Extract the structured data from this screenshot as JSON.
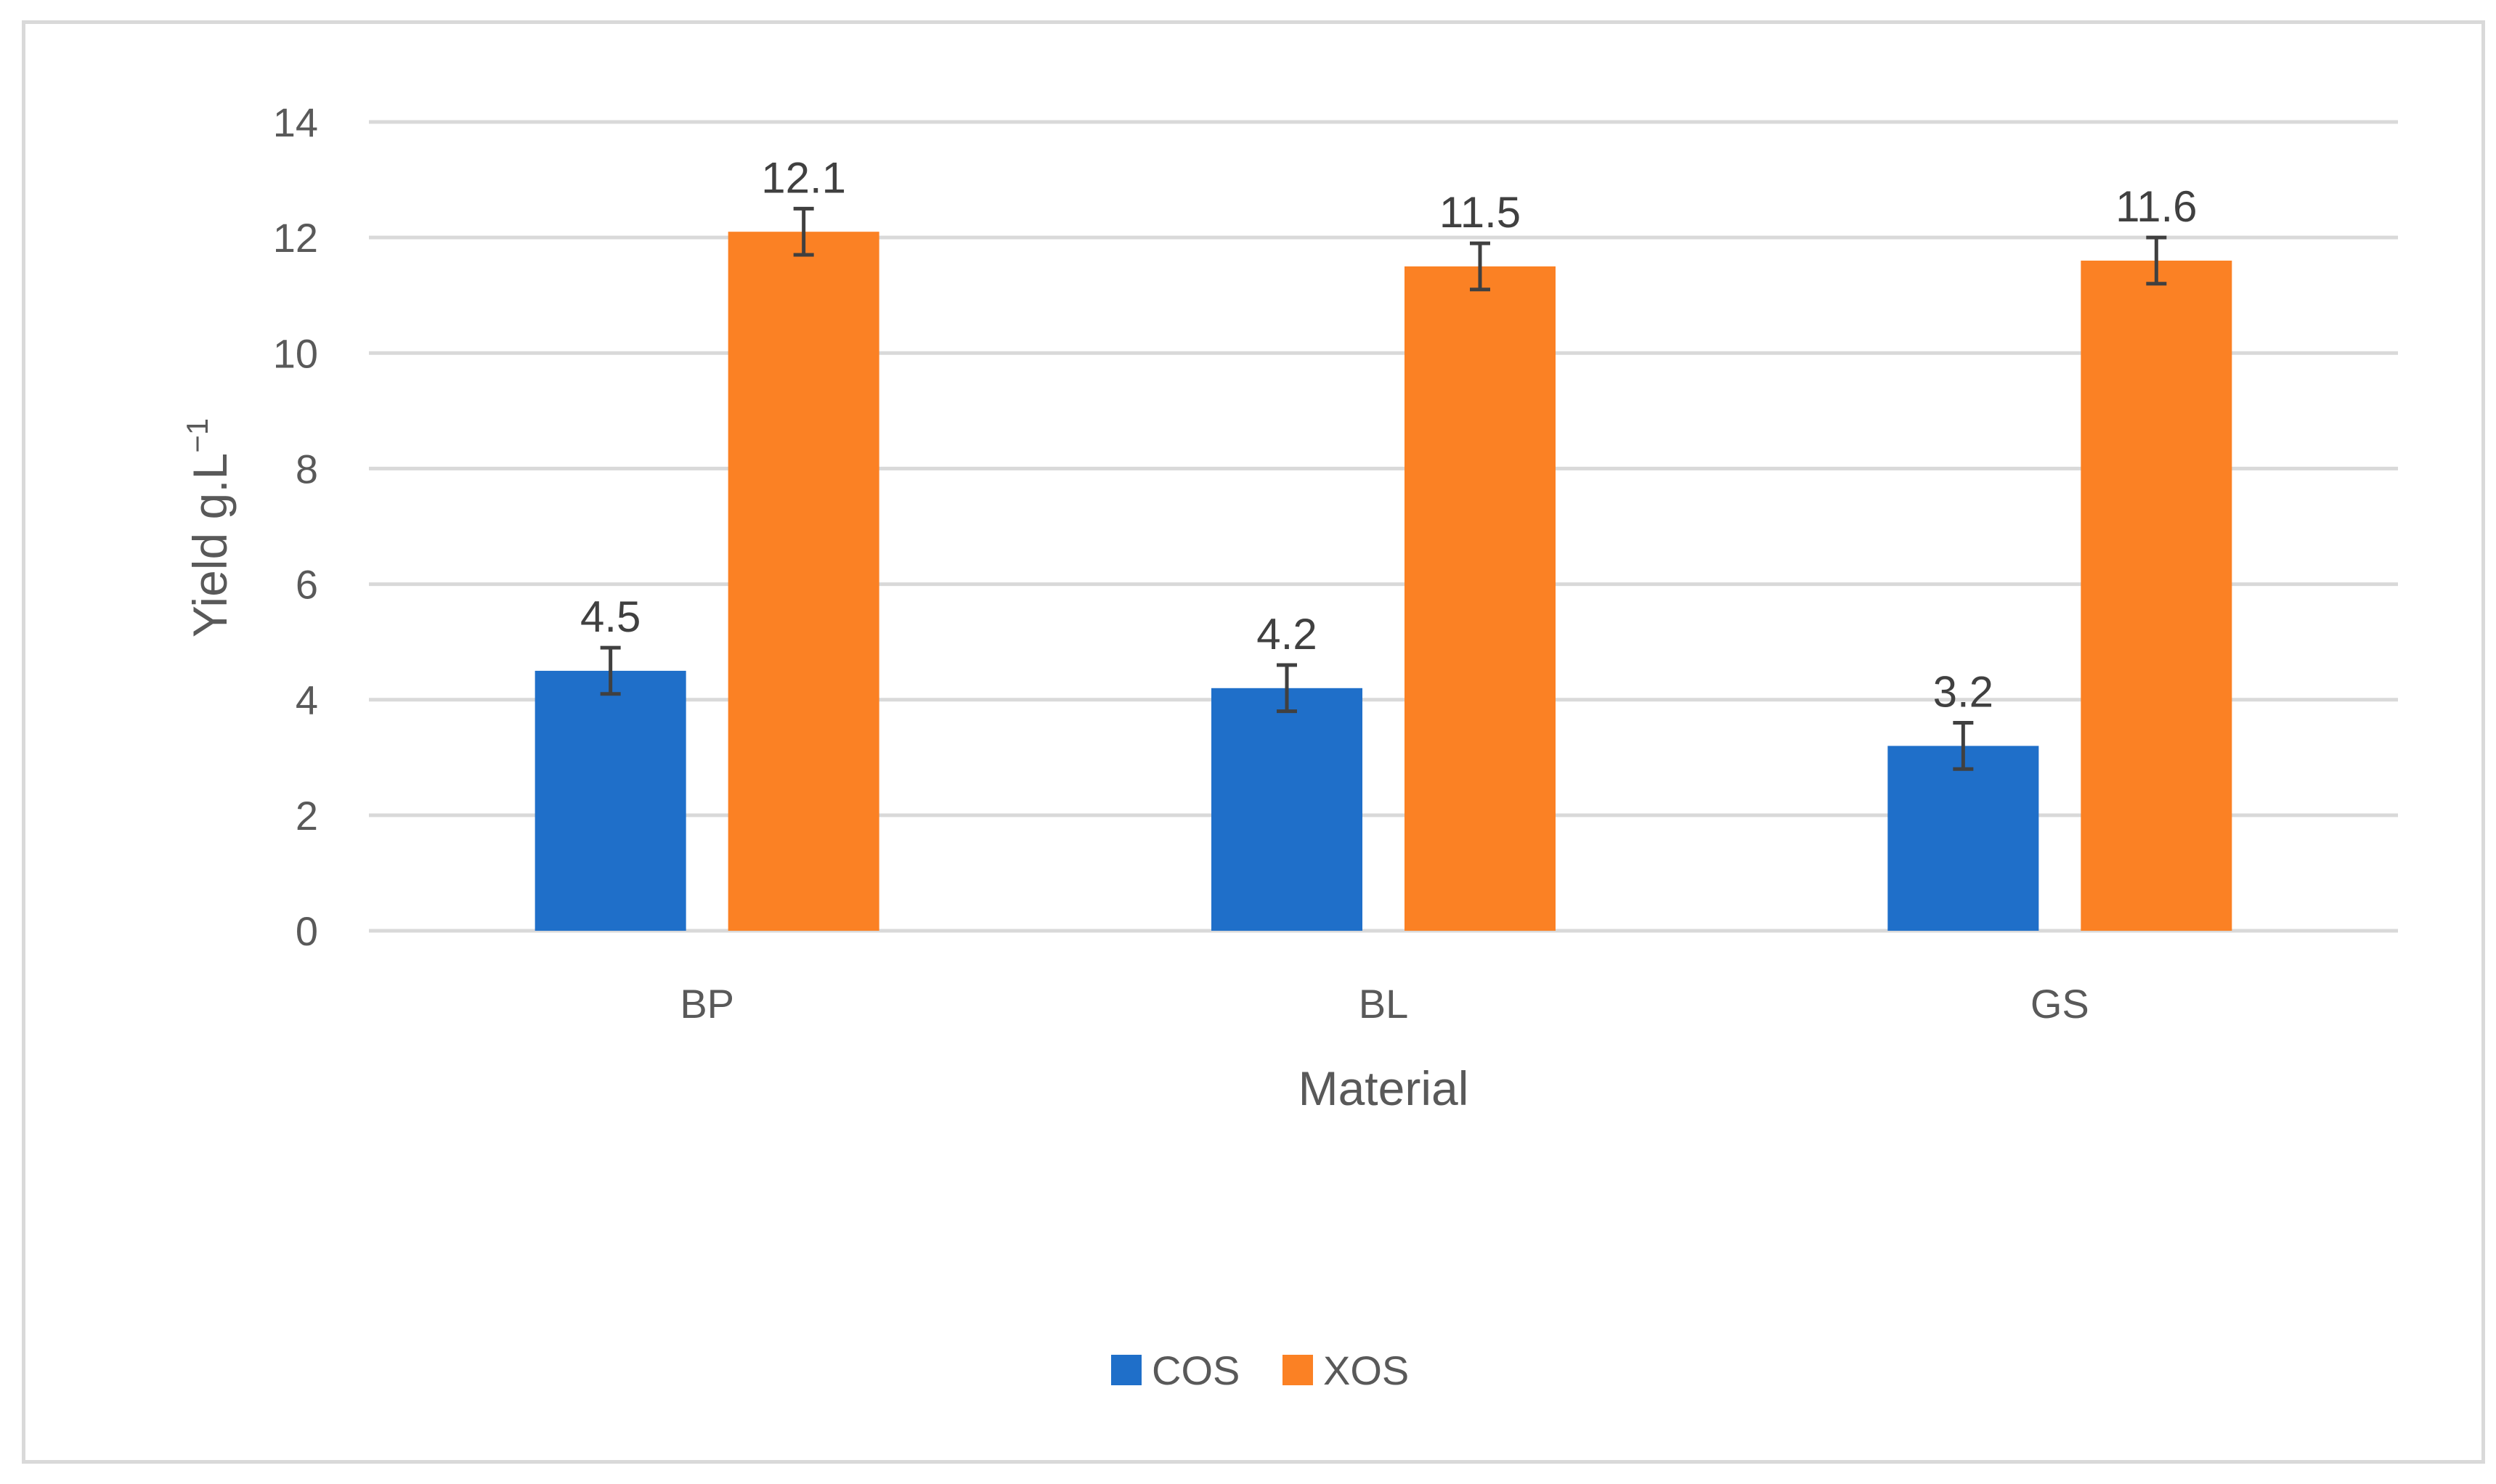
{
  "chart_data": {
    "type": "bar",
    "title": "",
    "xlabel": "Material",
    "ylabel": "Yield g.L",
    "ylabel_superscript": "−1",
    "categories": [
      "BP",
      "BL",
      "GS"
    ],
    "series": [
      {
        "name": "COS",
        "color": "#1f6fc9",
        "values": [
          4.5,
          4.2,
          3.2
        ],
        "errors": [
          0.4,
          0.4,
          0.4
        ]
      },
      {
        "name": "XOS",
        "color": "#fb8124",
        "values": [
          12.1,
          11.5,
          11.6
        ],
        "errors": [
          0.4,
          0.4,
          0.4
        ]
      }
    ],
    "data_labels": [
      [
        "4.5",
        "4.2",
        "3.2"
      ],
      [
        "12.1",
        "11.5",
        "11.6"
      ]
    ],
    "ylim": [
      0,
      14
    ],
    "yticks": [
      0,
      2,
      4,
      6,
      8,
      10,
      12,
      14
    ],
    "grid": true,
    "legend": "bottom-center"
  }
}
